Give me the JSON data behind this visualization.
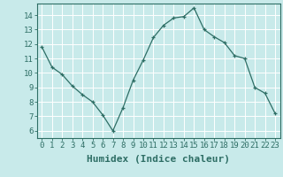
{
  "x": [
    0,
    1,
    2,
    3,
    4,
    5,
    6,
    7,
    8,
    9,
    10,
    11,
    12,
    13,
    14,
    15,
    16,
    17,
    18,
    19,
    20,
    21,
    22,
    23
  ],
  "y": [
    11.8,
    10.4,
    9.9,
    9.1,
    8.5,
    8.0,
    7.1,
    6.0,
    7.6,
    9.5,
    10.9,
    12.45,
    13.3,
    13.8,
    13.9,
    14.5,
    13.0,
    12.5,
    12.1,
    11.2,
    11.0,
    9.0,
    8.6,
    7.2
  ],
  "xlabel": "Humidex (Indice chaleur)",
  "xlim": [
    -0.5,
    23.5
  ],
  "ylim": [
    5.5,
    14.8
  ],
  "yticks": [
    6,
    7,
    8,
    9,
    10,
    11,
    12,
    13,
    14
  ],
  "xticks": [
    0,
    1,
    2,
    3,
    4,
    5,
    6,
    7,
    8,
    9,
    10,
    11,
    12,
    13,
    14,
    15,
    16,
    17,
    18,
    19,
    20,
    21,
    22,
    23
  ],
  "line_color": "#2e6e65",
  "marker": "+",
  "bg_color": "#c8eaea",
  "grid_color": "#ffffff",
  "axis_color": "#2e6e65",
  "label_color": "#2e6e65",
  "tick_label_fontsize": 6.5,
  "xlabel_fontsize": 8.0
}
